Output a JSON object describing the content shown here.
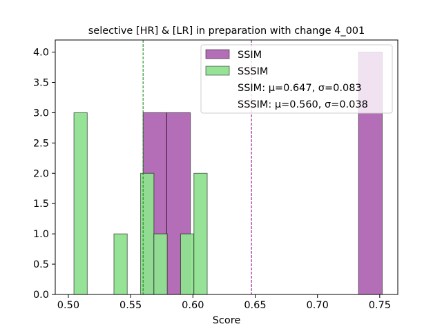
{
  "chart_data": {
    "type": "histogram",
    "title": "selective [HR] & [LR] in preparation with change 4_001",
    "xlabel": "Score",
    "ylabel": "",
    "xlim": [
      0.4895,
      0.7645
    ],
    "ylim": [
      0,
      4.2
    ],
    "x_ticks": [
      "0.50",
      "0.55",
      "0.60",
      "0.65",
      "0.70",
      "0.75"
    ],
    "x_tick_values": [
      0.5,
      0.55,
      0.6,
      0.65,
      0.7,
      0.75
    ],
    "y_ticks": [
      "0.0",
      "0.5",
      "1.0",
      "1.5",
      "2.0",
      "2.5",
      "3.0",
      "3.5",
      "4.0"
    ],
    "y_tick_values": [
      0.0,
      0.5,
      1.0,
      1.5,
      2.0,
      2.5,
      3.0,
      3.5,
      4.0
    ],
    "grid": false,
    "legend_position": "top-right",
    "series": [
      {
        "name": "SSIM",
        "color": "#9b3e9f",
        "alpha": 0.75,
        "bins": [
          {
            "x0": 0.56,
            "x1": 0.579,
            "count": 3
          },
          {
            "x0": 0.579,
            "x1": 0.598,
            "count": 3
          },
          {
            "x0": 0.733,
            "x1": 0.752,
            "count": 4
          }
        ],
        "mean_line": 0.647,
        "mean_line_color": "#800080"
      },
      {
        "name": "SSSIM",
        "color": "#90e090",
        "alpha": 0.95,
        "bins": [
          {
            "x0": 0.5045,
            "x1": 0.5152,
            "count": 3
          },
          {
            "x0": 0.5366,
            "x1": 0.5473,
            "count": 1
          },
          {
            "x0": 0.558,
            "x1": 0.5687,
            "count": 2
          },
          {
            "x0": 0.5687,
            "x1": 0.5794,
            "count": 1
          },
          {
            "x0": 0.5901,
            "x1": 0.6008,
            "count": 1
          },
          {
            "x0": 0.6008,
            "x1": 0.6115,
            "count": 2
          }
        ],
        "mean_line": 0.56,
        "mean_line_color": "#008000"
      }
    ],
    "stats_lines": [
      "SSIM: μ=0.647, σ=0.083",
      "SSSIM: μ=0.560, σ=0.038"
    ]
  }
}
